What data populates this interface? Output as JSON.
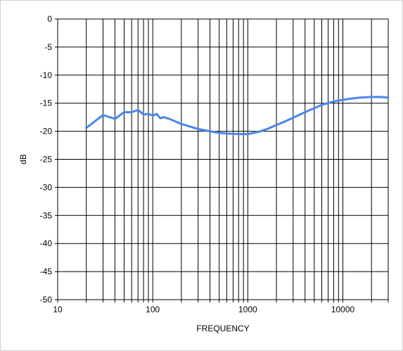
{
  "chart_data": {
    "type": "line",
    "xscale": "log",
    "xlabel": "FREQUENCY",
    "ylabel": "dB",
    "xlim": [
      10,
      30000
    ],
    "ylim": [
      -50,
      0
    ],
    "grid": true,
    "legend": "none",
    "x_tick_labels": [
      "10",
      "100",
      "1000",
      "10000"
    ],
    "x_tick_values": [
      10,
      100,
      1000,
      10000
    ],
    "y_ticks": [
      0,
      -5,
      -10,
      -15,
      -20,
      -25,
      -30,
      -35,
      -40,
      -45,
      -50
    ],
    "series": [
      {
        "color": "#4a86e8",
        "points": [
          [
            20,
            -19.4
          ],
          [
            30,
            -17.1
          ],
          [
            40,
            -17.8
          ],
          [
            50,
            -16.6
          ],
          [
            60,
            -16.6
          ],
          [
            70,
            -16.2
          ],
          [
            80,
            -17.0
          ],
          [
            90,
            -16.9
          ],
          [
            100,
            -17.2
          ],
          [
            110,
            -16.9
          ],
          [
            120,
            -17.7
          ],
          [
            130,
            -17.5
          ],
          [
            150,
            -17.8
          ],
          [
            170,
            -18.2
          ],
          [
            200,
            -18.7
          ],
          [
            250,
            -19.2
          ],
          [
            300,
            -19.6
          ],
          [
            400,
            -20.0
          ],
          [
            500,
            -20.3
          ],
          [
            600,
            -20.4
          ],
          [
            800,
            -20.5
          ],
          [
            1000,
            -20.5
          ],
          [
            1300,
            -20.1
          ],
          [
            1600,
            -19.6
          ],
          [
            2000,
            -18.9
          ],
          [
            2500,
            -18.2
          ],
          [
            3000,
            -17.6
          ],
          [
            4000,
            -16.6
          ],
          [
            5000,
            -15.9
          ],
          [
            6000,
            -15.3
          ],
          [
            8000,
            -14.7
          ],
          [
            10000,
            -14.4
          ],
          [
            12000,
            -14.2
          ],
          [
            15000,
            -14.0
          ],
          [
            20000,
            -13.9
          ],
          [
            25000,
            -13.9
          ],
          [
            30000,
            -14.0
          ]
        ]
      }
    ]
  }
}
